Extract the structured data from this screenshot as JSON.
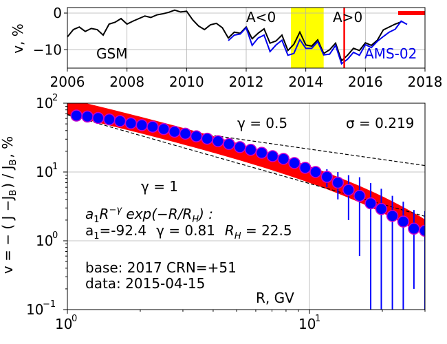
{
  "chart_data": [
    {
      "type": "line",
      "ylabel": "v, %",
      "xlim": [
        2006,
        2018
      ],
      "ylim": [
        -15,
        1.5
      ],
      "x_ticks": [
        2006,
        2008,
        2010,
        2012,
        2014,
        2016,
        2018
      ],
      "y_ticks": [
        0,
        -10
      ],
      "y_tick_labels": [
        "0",
        "−10"
      ],
      "grid": true,
      "text_labels": {
        "gsm": "GSM",
        "a_neg": "A<0",
        "a_pos": "A>0",
        "ams": "AMS-02"
      },
      "highlight_band": {
        "from": 2013.5,
        "to": 2014.6,
        "color": "#ffff00"
      },
      "vertical_marker": {
        "x": 2015.29,
        "color": "#ff0000"
      },
      "bar_marker": {
        "from": 2017.1,
        "to": 2018,
        "y": 0,
        "color": "#ff0000"
      },
      "series": [
        {
          "name": "GSM",
          "color": "#000000",
          "x": [
            2006.0,
            2006.2,
            2006.4,
            2006.6,
            2006.8,
            2007.0,
            2007.2,
            2007.4,
            2007.6,
            2007.8,
            2008.0,
            2008.2,
            2008.4,
            2008.6,
            2008.8,
            2009.0,
            2009.2,
            2009.4,
            2009.6,
            2009.8,
            2010.0,
            2010.2,
            2010.4,
            2010.6,
            2010.8,
            2011.0,
            2011.2,
            2011.4,
            2011.6,
            2011.8,
            2012.0,
            2012.2,
            2012.4,
            2012.6,
            2012.8,
            2013.0,
            2013.2,
            2013.4,
            2013.6,
            2013.8,
            2014.0,
            2014.2,
            2014.4,
            2014.6,
            2014.8,
            2015.0,
            2015.2,
            2015.4,
            2015.6,
            2015.8,
            2016.0,
            2016.2,
            2016.4,
            2016.6,
            2016.8,
            2017.0,
            2017.2
          ],
          "values": [
            -6.5,
            -4.5,
            -3.8,
            -5,
            -4.2,
            -4.5,
            -6,
            -3,
            -2.5,
            -1.5,
            -3,
            -2.2,
            -1.5,
            -0.8,
            -1.2,
            -0.5,
            -0.2,
            0.2,
            0.8,
            0.3,
            0.5,
            -1.8,
            -3.5,
            -4.5,
            -3.2,
            -2.8,
            -4,
            -6.8,
            -5.2,
            -5.5,
            -3.8,
            -7,
            -5.5,
            -4.3,
            -8.2,
            -7.6,
            -6,
            -10.2,
            -8.5,
            -5.2,
            -8.7,
            -9,
            -7.3,
            -11,
            -10,
            -8.2,
            -13,
            -11.5,
            -9.6,
            -10.2,
            -8.1,
            -8.8,
            -7.4,
            -4.6,
            -3.8,
            -3.0,
            -2.4
          ]
        },
        {
          "name": "AMS-02",
          "color": "#0000ee",
          "x": [
            2011.4,
            2011.6,
            2011.8,
            2012.0,
            2012.2,
            2012.4,
            2012.6,
            2012.8,
            2013.0,
            2013.2,
            2013.4,
            2013.6,
            2013.8,
            2014.0,
            2014.2,
            2014.4,
            2014.6,
            2014.8,
            2015.0,
            2015.2,
            2015.4,
            2015.6,
            2015.8,
            2016.0,
            2016.2,
            2016.4,
            2016.6,
            2016.8,
            2017.0,
            2017.2,
            2017.4
          ],
          "values": [
            -7.5,
            -6,
            -5.7,
            -4,
            -8.8,
            -6.8,
            -6,
            -10.5,
            -8.7,
            -7.4,
            -11.5,
            -11,
            -7.2,
            -9.6,
            -9.6,
            -7.8,
            -11.4,
            -11.2,
            -8.8,
            -13.8,
            -12.6,
            -10.7,
            -11.5,
            -8.6,
            -9.4,
            -7.7,
            -6.4,
            -5.2,
            -4.4,
            -2.2,
            -3.1
          ]
        }
      ]
    },
    {
      "type": "scatter",
      "xlabel": "R, GV",
      "ylabel": "v = − ( J −Jʙ ) / Jʙ , %",
      "ylabel_parts": {
        "lhs": "v = − ( J −J",
        "b1": "B",
        "mid": ") / J",
        "b2": "B",
        "rhs": ", %"
      },
      "xscale": "log",
      "yscale": "log",
      "xlim": [
        1,
        30
      ],
      "ylim": [
        0.1,
        100
      ],
      "x_tick_labels": {
        "1": "10",
        "10": "10",
        "exp1": "0",
        "exp10": "1"
      },
      "y_tick_labels": [
        {
          "v": 100,
          "base": "10",
          "exp": "2"
        },
        {
          "v": 10,
          "base": "10",
          "exp": "1"
        },
        {
          "v": 1,
          "base": "10",
          "exp": "0"
        },
        {
          "v": 0.1,
          "base": "10",
          "exp": "−1"
        }
      ],
      "grid": true,
      "annotations": {
        "gamma_half": "γ = 0.5",
        "sigma": "σ = 0.219",
        "gamma_one": "γ = 1",
        "formula": "a₁R⁻ᵞ exp(−R/Rₕ) :",
        "formula_parts": {
          "a": "a",
          "a_sub": "1",
          "R": "R",
          "R_sup": "−γ",
          "exp": " exp(−R/R",
          "H": "H",
          "tail": ") :"
        },
        "params_parts": {
          "a": "a",
          "a_sub": "1",
          "a_val": "=-92.4",
          "gamma": "γ = 0.81",
          "RH": "R",
          "RH_sub": "H",
          "RH_val": " = 22.5"
        },
        "base_line": "base: 2017   CRN=+51",
        "data_line": "data: 2015-04-15"
      },
      "fit": {
        "a1": -92.4,
        "gamma": 0.81,
        "R_H": 22.5,
        "band_color": "#ff0000"
      },
      "reference_lines": [
        {
          "gamma": 0.5,
          "R0": 1.0,
          "v0": 68
        },
        {
          "gamma": 1.0,
          "R0": 1.0,
          "v0": 68
        }
      ],
      "points": {
        "marker_color": "#0000ff",
        "edge_color": "#cc00cc",
        "x": [
          1.09,
          1.21,
          1.34,
          1.49,
          1.65,
          1.83,
          2.03,
          2.25,
          2.5,
          2.77,
          3.07,
          3.41,
          3.78,
          4.19,
          4.65,
          5.16,
          5.72,
          6.35,
          7.04,
          7.81,
          8.66,
          9.6,
          10.6,
          11.8,
          13.1,
          14.5,
          16.1,
          17.9,
          19.8,
          22.0,
          24.4,
          27.0,
          30.0
        ],
        "y": [
          66,
          64,
          61,
          58,
          55,
          51,
          48,
          45.5,
          42,
          38.5,
          36,
          33,
          30.5,
          28,
          25.5,
          23,
          21,
          19,
          17,
          15.5,
          13.5,
          11.5,
          10,
          8.5,
          7,
          5.5,
          4.5,
          3.5,
          2.9,
          2.3,
          1.9,
          1.5,
          1.4
        ],
        "err": [
          0,
          0,
          0,
          0,
          0,
          0,
          0,
          0,
          0,
          0,
          0,
          0,
          0,
          0,
          0,
          0,
          0,
          0,
          0.5,
          0.6,
          1,
          1.3,
          1.8,
          2.5,
          3,
          3.5,
          3.9,
          3.4,
          2.8,
          2.2,
          1.8,
          1.3,
          1.3
        ]
      }
    }
  ]
}
